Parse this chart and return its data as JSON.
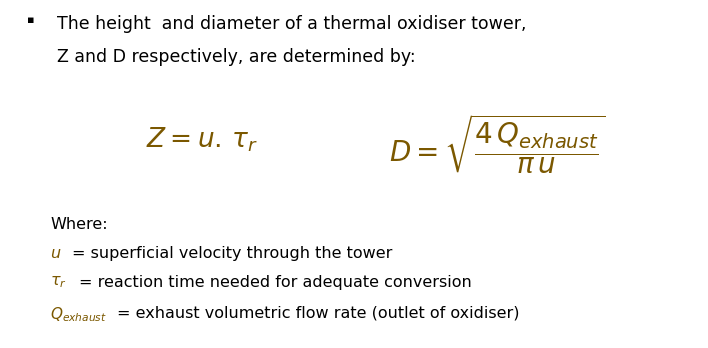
{
  "bg_color": "#ffffff",
  "bullet_color": "#000000",
  "title_line1": "The height  and diameter of a thermal oxidiser tower,",
  "title_line2": "Z and D respectively, are determined by:",
  "formula_Z": "$\\mathit{Z} = \\mathit{u}.\\,\\mathit{\\tau}_r$",
  "formula_D": "$\\mathit{D} = \\sqrt{\\dfrac{4\\,\\mathit{Q}_{exhaust}}{\\pi\\,\\mathit{u}}}$",
  "where_label": "Where:",
  "def1_italic": "$\\mathit{u}$",
  "def1_rest": "= superficial velocity through the tower",
  "def2_italic": "$\\mathit{\\tau}_r$",
  "def2_rest": "= reaction time needed for adequate conversion",
  "def3_italic": "$\\mathit{Q}_{exhaust}$",
  "def3_rest": "= exhaust volumetric flow rate (outlet of oxidiser)",
  "text_color": "#000000",
  "italic_color": "#7B5800",
  "title_fontsize": 12.5,
  "formula_fontsize": 19,
  "def_fontsize": 11.5,
  "where_fontsize": 11.5,
  "fig_width": 7.08,
  "fig_height": 3.48,
  "dpi": 100
}
